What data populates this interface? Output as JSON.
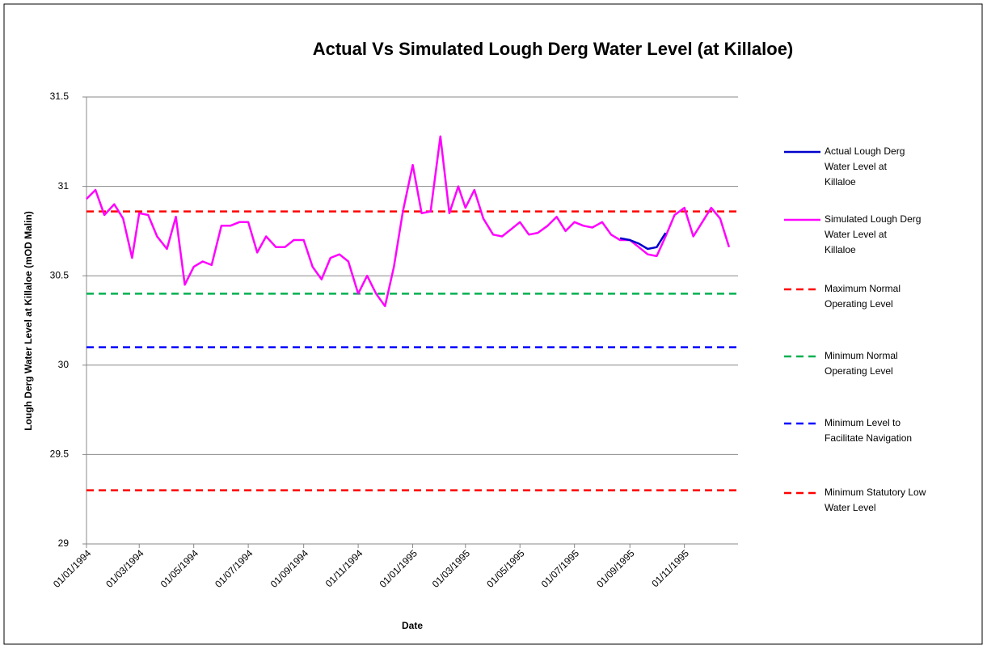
{
  "chart_data": {
    "type": "line",
    "title": "Actual Vs Simulated Lough Derg Water Level (at Killaloe)",
    "xlabel": "Date",
    "ylabel": "Lough Derg Water Level at Killaloe (mOD Malin)",
    "x": [
      "01/01/1994",
      "11/01/1994",
      "21/01/1994",
      "01/02/1994",
      "11/02/1994",
      "21/02/1994",
      "01/03/1994",
      "11/03/1994",
      "21/03/1994",
      "01/04/1994",
      "11/04/1994",
      "21/04/1994",
      "01/05/1994",
      "11/05/1994",
      "21/05/1994",
      "01/06/1994",
      "11/06/1994",
      "21/06/1994",
      "01/07/1994",
      "11/07/1994",
      "21/07/1994",
      "01/08/1994",
      "11/08/1994",
      "21/08/1994",
      "01/09/1994",
      "11/09/1994",
      "21/09/1994",
      "01/10/1994",
      "11/10/1994",
      "21/10/1994",
      "01/11/1994",
      "11/11/1994",
      "21/11/1994",
      "01/12/1994",
      "11/12/1994",
      "21/12/1994",
      "01/01/1995",
      "11/01/1995",
      "21/01/1995",
      "01/02/1995",
      "11/02/1995",
      "21/02/1995",
      "01/03/1995",
      "11/03/1995",
      "21/03/1995",
      "01/04/1995",
      "11/04/1995",
      "21/04/1995",
      "01/05/1995",
      "11/05/1995",
      "21/05/1995",
      "01/06/1995",
      "11/06/1995",
      "21/06/1995",
      "01/07/1995",
      "11/07/1995",
      "21/07/1995",
      "01/08/1995",
      "11/08/1995",
      "21/08/1995",
      "01/09/1995",
      "11/09/1995",
      "21/09/1995",
      "01/10/1995",
      "11/10/1995",
      "21/10/1995",
      "01/11/1995",
      "11/11/1995",
      "21/11/1995",
      "01/12/1995",
      "11/12/1995",
      "21/12/1995"
    ],
    "series": [
      {
        "name": "Actual Lough Derg Water Level at Killaloe",
        "color": "#0000cc",
        "values": [
          null,
          null,
          null,
          null,
          null,
          null,
          null,
          null,
          null,
          null,
          null,
          null,
          null,
          null,
          null,
          null,
          null,
          null,
          null,
          null,
          null,
          null,
          null,
          null,
          null,
          null,
          null,
          null,
          null,
          null,
          null,
          null,
          null,
          null,
          null,
          null,
          null,
          null,
          null,
          null,
          null,
          null,
          null,
          null,
          null,
          null,
          null,
          null,
          null,
          null,
          null,
          null,
          null,
          null,
          null,
          null,
          null,
          null,
          null,
          30.71,
          30.7,
          30.68,
          30.65,
          30.66,
          30.74,
          null,
          null,
          null,
          null,
          null,
          null,
          null
        ]
      },
      {
        "name": "Simulated Lough Derg Water Level at Killaloe",
        "color": "#ff00ff",
        "values": [
          30.93,
          30.98,
          30.84,
          30.9,
          30.82,
          30.6,
          30.85,
          30.84,
          30.72,
          30.65,
          30.83,
          30.45,
          30.55,
          30.58,
          30.56,
          30.78,
          30.78,
          30.8,
          30.8,
          30.63,
          30.72,
          30.66,
          30.66,
          30.7,
          30.7,
          30.55,
          30.48,
          30.6,
          30.62,
          30.58,
          30.4,
          30.5,
          30.4,
          30.33,
          30.55,
          30.86,
          31.12,
          30.85,
          30.86,
          31.28,
          30.85,
          31.0,
          30.88,
          30.98,
          30.82,
          30.73,
          30.72,
          30.76,
          30.8,
          30.73,
          30.74,
          30.78,
          30.83,
          30.75,
          30.8,
          30.78,
          30.77,
          30.8,
          30.73,
          30.7,
          30.7,
          30.66,
          30.62,
          30.61,
          30.72,
          30.84,
          30.88,
          30.72,
          30.8,
          30.88,
          30.82,
          30.66
        ]
      }
    ],
    "reference_lines": [
      {
        "name": "Maximum Normal Operating Level",
        "value": 30.86,
        "color": "#ff0000"
      },
      {
        "name": "Minimum Normal Operating Level",
        "value": 30.4,
        "color": "#00b050"
      },
      {
        "name": "Minimum Level to Facilitate Navigation",
        "value": 30.1,
        "color": "#0000ff"
      },
      {
        "name": "Minimum Statutory Low Water Level",
        "value": 29.3,
        "color": "#ff0000"
      }
    ],
    "xlim": [
      "01/01/1994",
      "31/12/1995"
    ],
    "xticks": [
      "01/01/1994",
      "01/03/1994",
      "01/05/1994",
      "01/07/1994",
      "01/09/1994",
      "01/11/1994",
      "01/01/1995",
      "01/03/1995",
      "01/05/1995",
      "01/07/1995",
      "01/09/1995",
      "01/11/1995"
    ],
    "ylim": [
      29,
      31.5
    ],
    "yticks": [
      29,
      29.5,
      30,
      30.5,
      31,
      31.5
    ],
    "grid": true,
    "legend": "right"
  }
}
